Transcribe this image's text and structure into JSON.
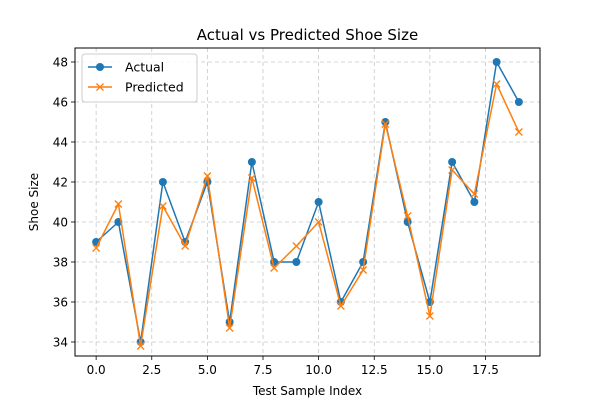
{
  "chart_data": {
    "type": "line",
    "title": "Actual vs Predicted Shoe Size",
    "xlabel": "Test Sample Index",
    "ylabel": "Shoe Size",
    "xlim": [
      -0.95,
      19.95
    ],
    "ylim": [
      33.3,
      48.7
    ],
    "xticks": [
      0.0,
      2.5,
      5.0,
      7.5,
      10.0,
      12.5,
      15.0,
      17.5
    ],
    "xtick_labels": [
      "0.0",
      "2.5",
      "5.0",
      "7.5",
      "10.0",
      "12.5",
      "15.0",
      "17.5"
    ],
    "yticks": [
      34,
      36,
      38,
      40,
      42,
      44,
      46,
      48
    ],
    "ytick_labels": [
      "34",
      "36",
      "38",
      "40",
      "42",
      "44",
      "46",
      "48"
    ],
    "grid": true,
    "legend_position": "top-left",
    "x": [
      0,
      1,
      2,
      3,
      4,
      5,
      6,
      7,
      8,
      9,
      10,
      11,
      12,
      13,
      14,
      15,
      16,
      17,
      18,
      19
    ],
    "series": [
      {
        "name": "Actual",
        "color": "#1f77b4",
        "marker": "circle",
        "values": [
          39,
          40,
          34,
          42,
          39,
          42,
          35,
          43,
          38,
          38,
          41,
          36,
          38,
          45,
          40,
          36,
          43,
          41,
          48,
          46
        ]
      },
      {
        "name": "Predicted",
        "color": "#ff7f0e",
        "marker": "x",
        "values": [
          38.7,
          40.9,
          33.8,
          40.8,
          38.8,
          42.3,
          34.7,
          42.2,
          37.7,
          38.8,
          40.0,
          35.8,
          37.6,
          44.9,
          40.3,
          35.3,
          42.6,
          41.4,
          46.9,
          44.5
        ]
      }
    ]
  }
}
